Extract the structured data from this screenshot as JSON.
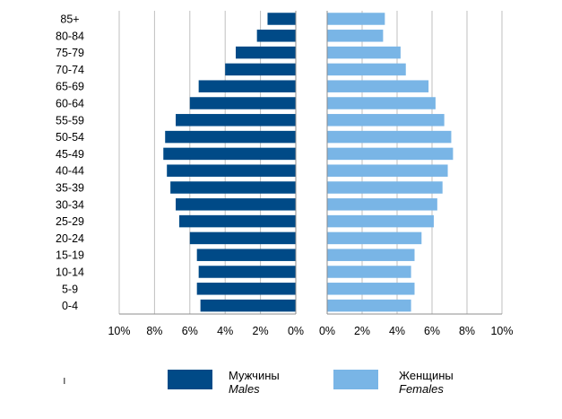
{
  "chart_data": {
    "type": "bar",
    "orientation": "horizontal-population-pyramid",
    "categories": [
      "85+",
      "80-84",
      "75-79",
      "70-74",
      "65-69",
      "60-64",
      "55-59",
      "50-54",
      "45-49",
      "40-44",
      "35-39",
      "30-34",
      "25-29",
      "20-24",
      "15-19",
      "10-14",
      "5-9",
      "0-4"
    ],
    "series": [
      {
        "key": "males",
        "name": "Мужчины",
        "name_en": "Males",
        "color": "#004a87",
        "values": [
          1.6,
          2.2,
          3.4,
          4.0,
          5.5,
          6.0,
          6.8,
          7.4,
          7.5,
          7.3,
          7.1,
          6.8,
          6.6,
          6.0,
          5.6,
          5.5,
          5.6,
          5.4
        ]
      },
      {
        "key": "females",
        "name": "Женщины",
        "name_en": "Females",
        "color": "#79b5e6",
        "values": [
          3.3,
          3.2,
          4.2,
          4.5,
          5.8,
          6.2,
          6.7,
          7.1,
          7.2,
          6.9,
          6.6,
          6.3,
          6.1,
          5.4,
          5.0,
          4.8,
          5.0,
          4.8
        ]
      }
    ],
    "xlim": [
      0,
      10
    ],
    "x_ticks_males": [
      "10%",
      "8%",
      "6%",
      "4%",
      "2%",
      "0%"
    ],
    "x_ticks_females": [
      "0%",
      "2%",
      "4%",
      "6%",
      "8%",
      "10%"
    ],
    "grid": true,
    "legend_position": "bottom",
    "stray_mark": "ı"
  }
}
